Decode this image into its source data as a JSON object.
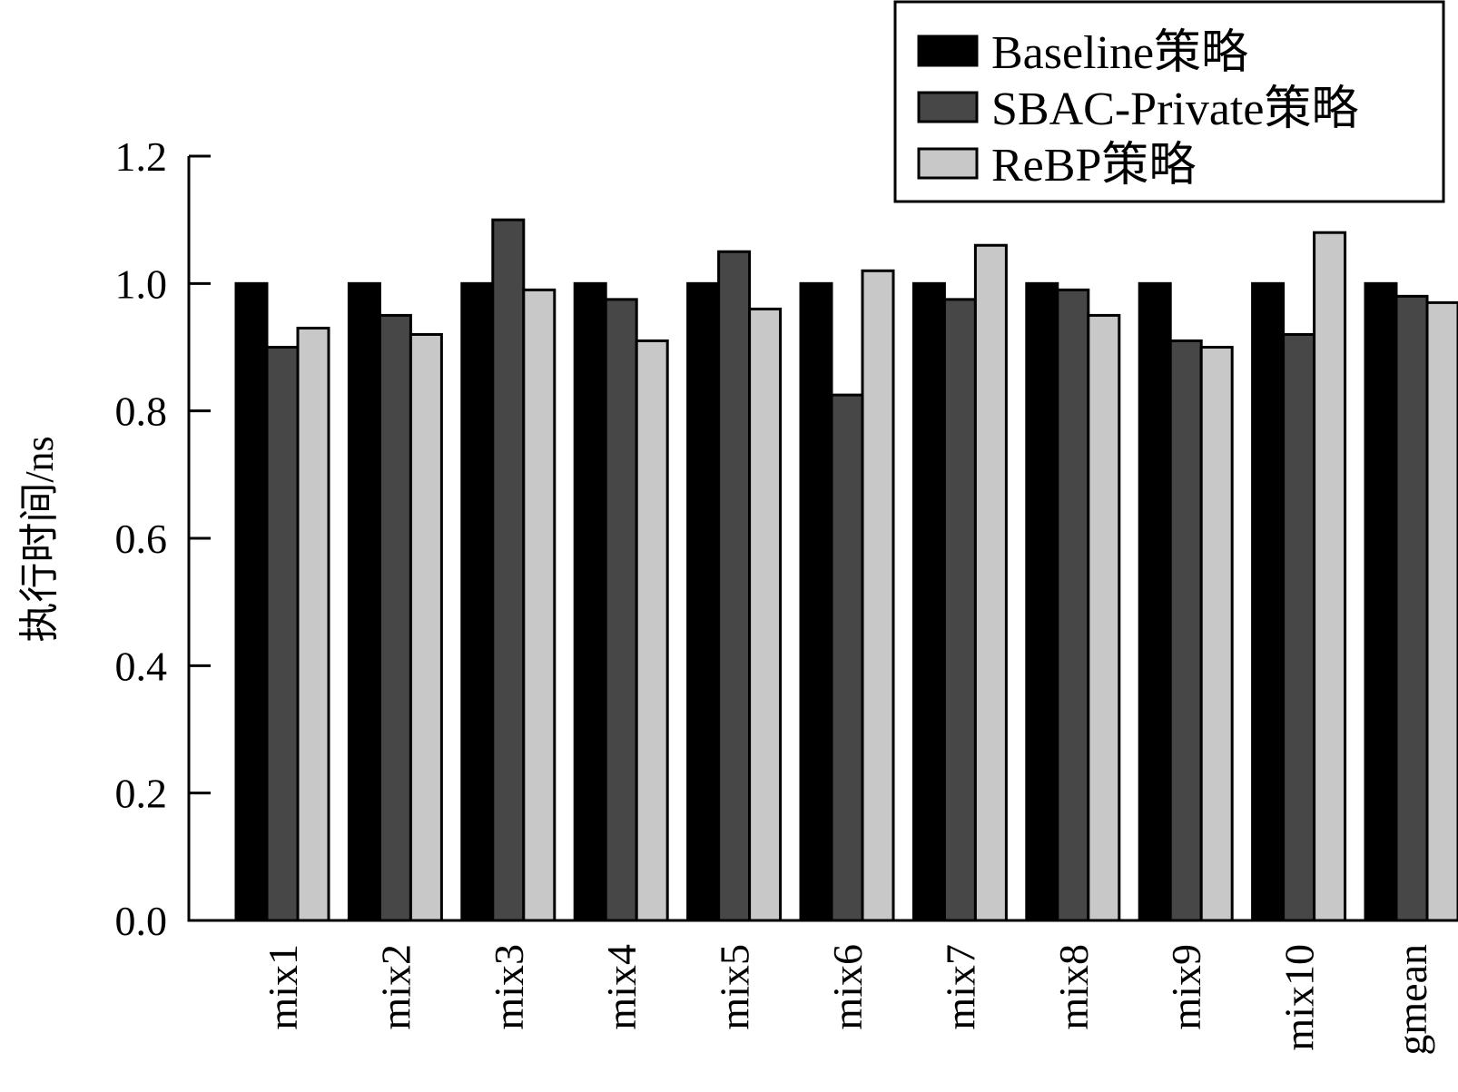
{
  "chart_data": {
    "type": "bar",
    "categories": [
      "mix1",
      "mix2",
      "mix3",
      "mix4",
      "mix5",
      "mix6",
      "mix7",
      "mix8",
      "mix9",
      "mix10",
      "gmean"
    ],
    "series": [
      {
        "name": "Baseline策略",
        "color": "#000000",
        "values": [
          1.0,
          1.0,
          1.0,
          1.0,
          1.0,
          1.0,
          1.0,
          1.0,
          1.0,
          1.0,
          1.0
        ]
      },
      {
        "name": "SBAC-Private策略",
        "color": "#474747",
        "values": [
          0.9,
          0.95,
          1.1,
          0.975,
          1.05,
          0.825,
          0.975,
          0.99,
          0.91,
          0.92,
          0.98
        ]
      },
      {
        "name": "ReBP策略",
        "color": "#c8c8c8",
        "values": [
          0.93,
          0.92,
          0.99,
          0.91,
          0.96,
          1.02,
          1.06,
          0.95,
          0.9,
          1.08,
          0.97
        ]
      }
    ],
    "title": "",
    "xlabel": "",
    "ylabel": "执行时间/ns",
    "ylim": [
      0,
      1.2
    ],
    "yticks": [
      "0.0",
      "0.2",
      "0.4",
      "0.6",
      "0.8",
      "1.0",
      "1.2"
    ],
    "grid": false,
    "legend_position": "top-right"
  }
}
